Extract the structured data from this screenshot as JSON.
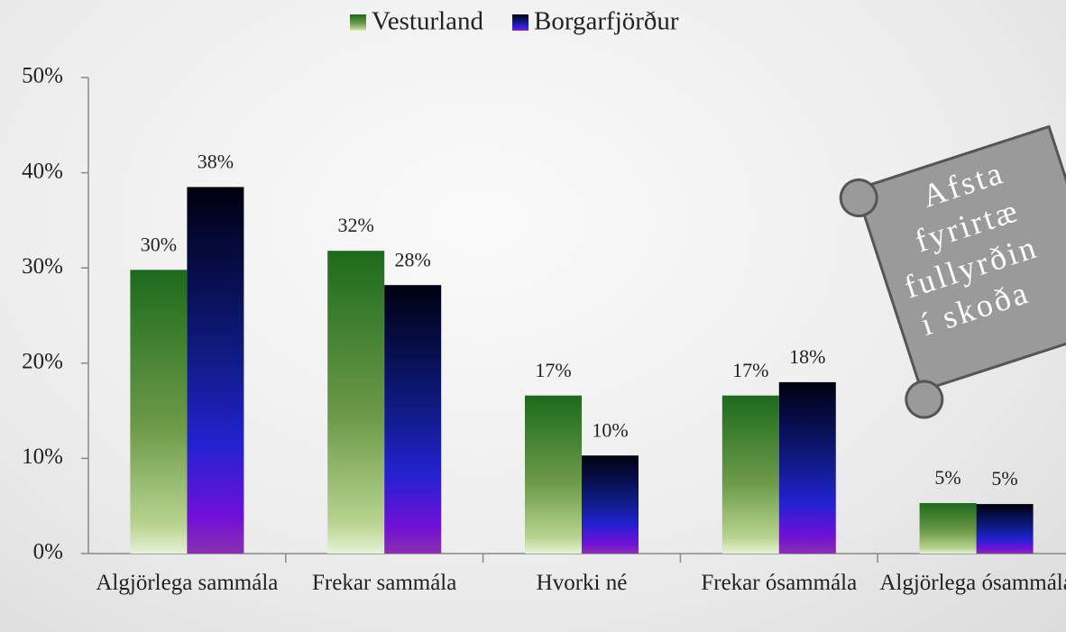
{
  "chart_data": {
    "type": "bar",
    "categories": [
      "Algjörlega sammála",
      "Frekar sammála",
      "Hvorki né",
      "Frekar ósammála",
      "Algjörlega ósammála"
    ],
    "series": [
      {
        "name": "Vesturland",
        "color": "#1d6a1d",
        "values": [
          29.8,
          31.8,
          16.6,
          16.6,
          5.3
        ],
        "value_labels": [
          "30%",
          "32%",
          "17%",
          "17%",
          "5%"
        ]
      },
      {
        "name": "Borgarfjörður",
        "color": "#000010",
        "values": [
          38.5,
          28.2,
          10.3,
          18.0,
          5.2
        ],
        "value_labels": [
          "38%",
          "28%",
          "10%",
          "18%",
          "5%"
        ]
      }
    ],
    "ylim": [
      0,
      50
    ],
    "yticks": [
      {
        "value": 0,
        "label": "0%"
      },
      {
        "value": 10,
        "label": "10%"
      },
      {
        "value": 20,
        "label": "20%"
      },
      {
        "value": 30,
        "label": "30%"
      },
      {
        "value": 40,
        "label": "40%"
      },
      {
        "value": 50,
        "label": "50%"
      }
    ],
    "legend": "top",
    "annotation": [
      "Afsta",
      "fyrirtæ",
      "fullyrðin",
      "í skoða"
    ]
  }
}
